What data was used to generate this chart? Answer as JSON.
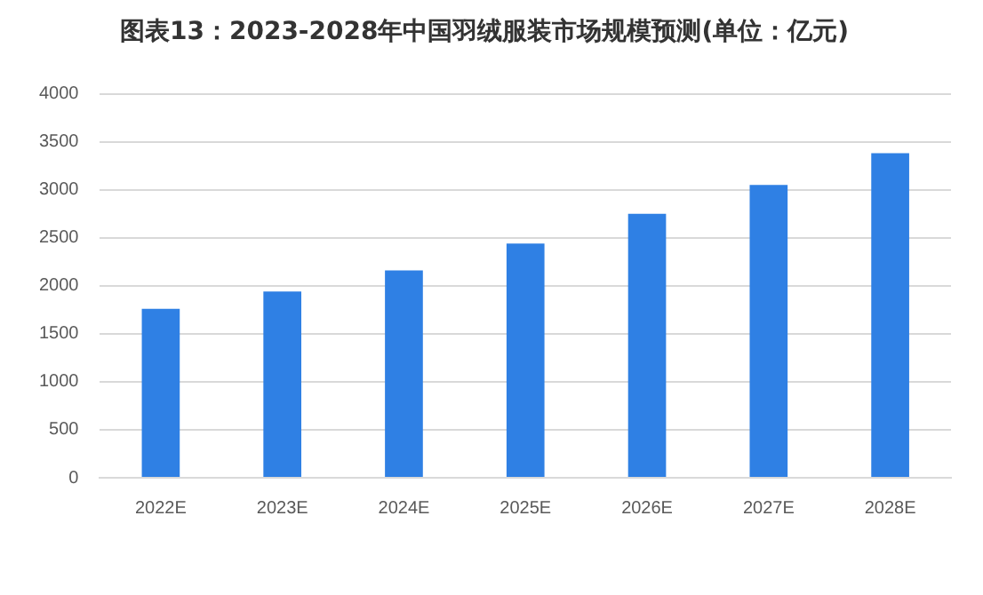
{
  "chart_data": {
    "type": "bar",
    "title": "图表13：2023-2028年中国羽绒服装市场规模预测(单位：亿元)",
    "categories": [
      "2022E",
      "2023E",
      "2024E",
      "2025E",
      "2026E",
      "2027E",
      "2028E"
    ],
    "values": [
      1760,
      1940,
      2160,
      2440,
      2750,
      3050,
      3380
    ],
    "color": "#2f80e4",
    "ylim": [
      0,
      4000
    ],
    "yticks": [
      0,
      500,
      1000,
      1500,
      2000,
      2500,
      3000,
      3500,
      4000
    ],
    "grid": "y"
  }
}
